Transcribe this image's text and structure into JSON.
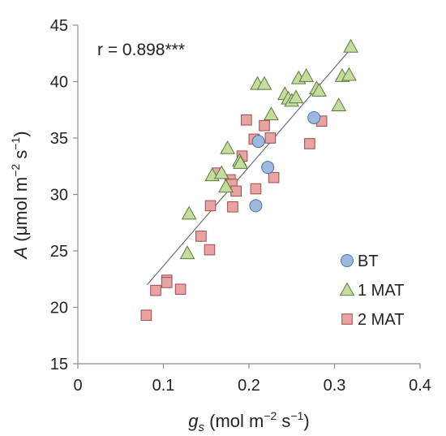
{
  "chart_data": {
    "type": "scatter",
    "title": "",
    "xlabel": "gs (mol m−2 s−1)",
    "ylabel": "A (μmol m−2 s−1)",
    "xlabel_parts": {
      "symbol": "g",
      "subscript": "s",
      "units": " (mol m",
      "exp1": "−2",
      "mid": " s",
      "exp2": "−1",
      "close": ")"
    },
    "ylabel_parts": {
      "symbol": "A",
      "units": " (μmol m",
      "exp1": "−2",
      "mid": " s",
      "exp2": "−1",
      "close": ")"
    },
    "xlim": [
      0,
      0.4
    ],
    "ylim": [
      15,
      45
    ],
    "x_ticks": [
      0,
      0.1,
      0.2,
      0.3,
      0.4
    ],
    "x_tick_labels": [
      "0",
      "0.1",
      "0.2",
      "0.3",
      "0.4"
    ],
    "y_ticks": [
      15,
      20,
      25,
      30,
      35,
      40,
      45
    ],
    "y_tick_labels": [
      "15",
      "20",
      "25",
      "30",
      "35",
      "40",
      "45"
    ],
    "grid": false,
    "annotation": "r = 0.898***",
    "legend_position": "bottom-right",
    "trendline": {
      "x": [
        0.081,
        0.319
      ],
      "y": [
        22.0,
        42.9
      ]
    },
    "series": [
      {
        "name": "BT",
        "marker": "circle",
        "color": "#9fb9dd",
        "edge": "#4a6fa5",
        "points": [
          {
            "x": 0.211,
            "y": 34.7
          },
          {
            "x": 0.222,
            "y": 32.4
          },
          {
            "x": 0.208,
            "y": 29.0
          },
          {
            "x": 0.276,
            "y": 36.8
          }
        ]
      },
      {
        "name": "1 MAT",
        "marker": "triangle",
        "color": "#c4dca0",
        "edge": "#5d7a3a",
        "points": [
          {
            "x": 0.319,
            "y": 43.1
          },
          {
            "x": 0.21,
            "y": 39.8
          },
          {
            "x": 0.218,
            "y": 39.8
          },
          {
            "x": 0.242,
            "y": 38.9
          },
          {
            "x": 0.246,
            "y": 38.5
          },
          {
            "x": 0.25,
            "y": 38.3
          },
          {
            "x": 0.255,
            "y": 38.6
          },
          {
            "x": 0.258,
            "y": 40.3
          },
          {
            "x": 0.267,
            "y": 40.5
          },
          {
            "x": 0.279,
            "y": 39.4
          },
          {
            "x": 0.282,
            "y": 39.2
          },
          {
            "x": 0.309,
            "y": 40.5
          },
          {
            "x": 0.317,
            "y": 40.6
          },
          {
            "x": 0.305,
            "y": 37.9
          },
          {
            "x": 0.226,
            "y": 37.1
          },
          {
            "x": 0.175,
            "y": 34.1
          },
          {
            "x": 0.189,
            "y": 33.0
          },
          {
            "x": 0.19,
            "y": 32.8
          },
          {
            "x": 0.157,
            "y": 31.7
          },
          {
            "x": 0.168,
            "y": 31.9
          },
          {
            "x": 0.173,
            "y": 30.7
          },
          {
            "x": 0.13,
            "y": 28.3
          },
          {
            "x": 0.128,
            "y": 24.8
          }
        ]
      },
      {
        "name": "2 MAT",
        "marker": "square",
        "color": "#e8a3a3",
        "edge": "#a04b4b",
        "points": [
          {
            "x": 0.197,
            "y": 36.6
          },
          {
            "x": 0.218,
            "y": 36.1
          },
          {
            "x": 0.206,
            "y": 34.9
          },
          {
            "x": 0.225,
            "y": 35.0
          },
          {
            "x": 0.285,
            "y": 36.5
          },
          {
            "x": 0.271,
            "y": 34.5
          },
          {
            "x": 0.192,
            "y": 33.4
          },
          {
            "x": 0.163,
            "y": 31.9
          },
          {
            "x": 0.178,
            "y": 31.3
          },
          {
            "x": 0.229,
            "y": 31.5
          },
          {
            "x": 0.18,
            "y": 30.9
          },
          {
            "x": 0.185,
            "y": 30.3
          },
          {
            "x": 0.208,
            "y": 30.5
          },
          {
            "x": 0.155,
            "y": 29.0
          },
          {
            "x": 0.181,
            "y": 28.9
          },
          {
            "x": 0.144,
            "y": 26.3
          },
          {
            "x": 0.154,
            "y": 25.1
          },
          {
            "x": 0.104,
            "y": 22.4
          },
          {
            "x": 0.104,
            "y": 22.2
          },
          {
            "x": 0.12,
            "y": 21.6
          },
          {
            "x": 0.091,
            "y": 21.5
          },
          {
            "x": 0.08,
            "y": 19.3
          }
        ]
      }
    ]
  }
}
